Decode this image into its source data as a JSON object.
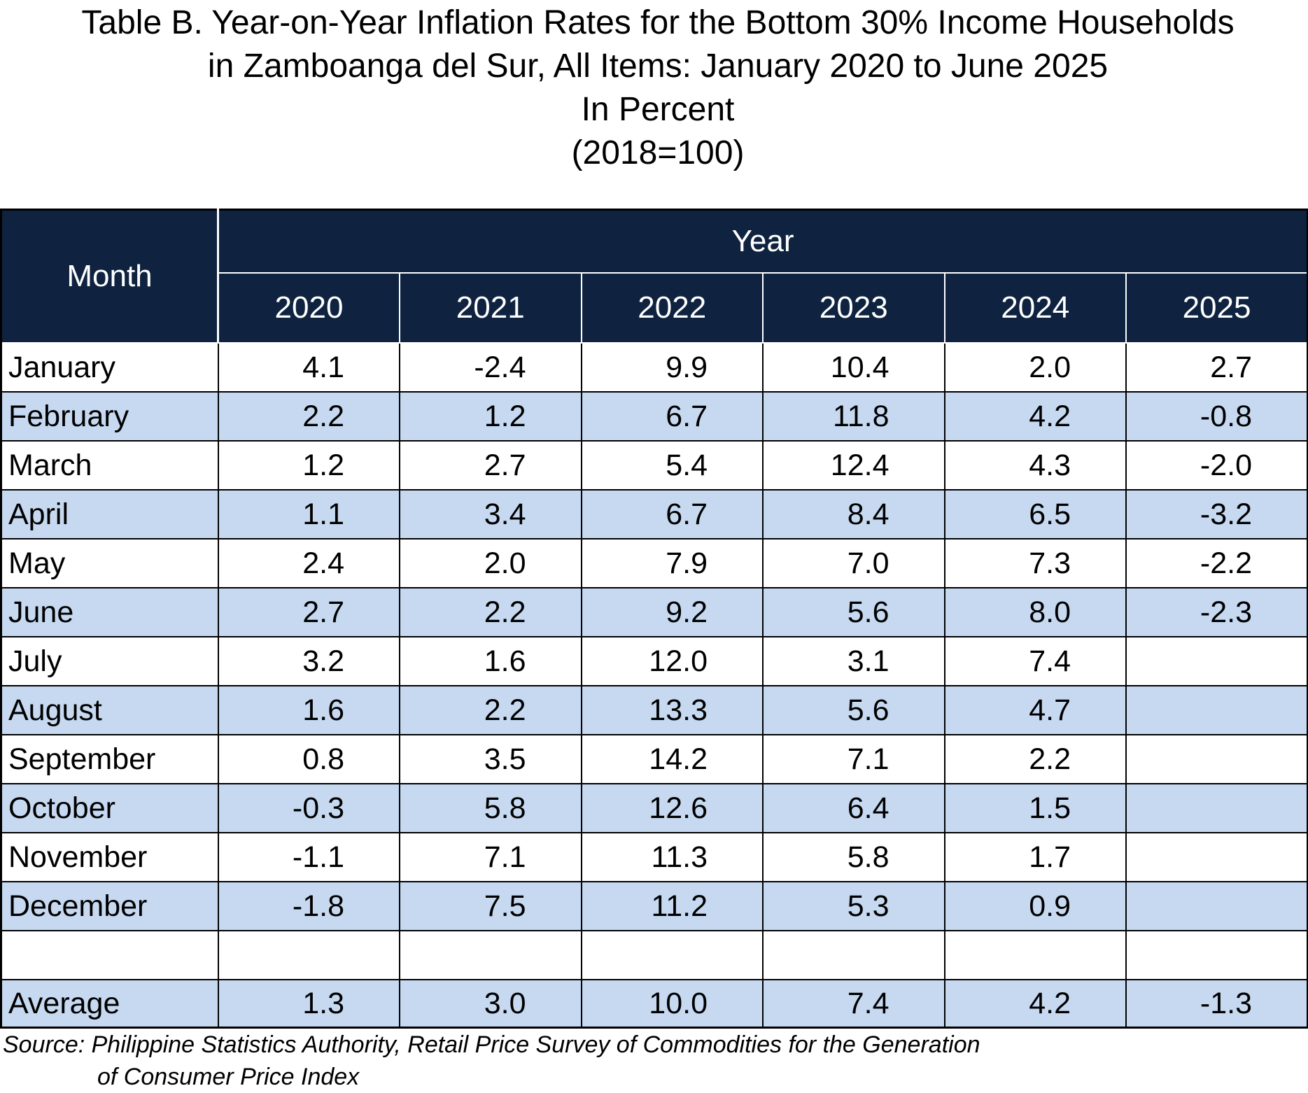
{
  "chart_data": {
    "type": "table",
    "title": [
      "Table B. Year-on-Year Inflation Rates for the Bottom 30% Income Households",
      "in Zamboanga del Sur, All Items: January 2020 to June 2025",
      "In Percent",
      "(2018=100)"
    ],
    "header": {
      "month": "Month",
      "group": "Year",
      "years": [
        "2020",
        "2021",
        "2022",
        "2023",
        "2024",
        "2025"
      ]
    },
    "rows": [
      {
        "month": "January",
        "values": [
          "4.1",
          "-2.4",
          "9.9",
          "10.4",
          "2.0",
          "2.7"
        ]
      },
      {
        "month": "February",
        "values": [
          "2.2",
          "1.2",
          "6.7",
          "11.8",
          "4.2",
          "-0.8"
        ]
      },
      {
        "month": "March",
        "values": [
          "1.2",
          "2.7",
          "5.4",
          "12.4",
          "4.3",
          "-2.0"
        ]
      },
      {
        "month": "April",
        "values": [
          "1.1",
          "3.4",
          "6.7",
          "8.4",
          "6.5",
          "-3.2"
        ]
      },
      {
        "month": "May",
        "values": [
          "2.4",
          "2.0",
          "7.9",
          "7.0",
          "7.3",
          "-2.2"
        ]
      },
      {
        "month": "June",
        "values": [
          "2.7",
          "2.2",
          "9.2",
          "5.6",
          "8.0",
          "-2.3"
        ]
      },
      {
        "month": "July",
        "values": [
          "3.2",
          "1.6",
          "12.0",
          "3.1",
          "7.4",
          ""
        ]
      },
      {
        "month": "August",
        "values": [
          "1.6",
          "2.2",
          "13.3",
          "5.6",
          "4.7",
          ""
        ]
      },
      {
        "month": "September",
        "values": [
          "0.8",
          "3.5",
          "14.2",
          "7.1",
          "2.2",
          ""
        ]
      },
      {
        "month": "October",
        "values": [
          "-0.3",
          "5.8",
          "12.6",
          "6.4",
          "1.5",
          ""
        ]
      },
      {
        "month": "November",
        "values": [
          "-1.1",
          "7.1",
          "11.3",
          "5.8",
          "1.7",
          ""
        ]
      },
      {
        "month": "December",
        "values": [
          "-1.8",
          "7.5",
          "11.2",
          "5.3",
          "0.9",
          ""
        ]
      }
    ],
    "average": {
      "month": "Average",
      "values": [
        "1.3",
        "3.0",
        "10.0",
        "7.4",
        "4.2",
        "-1.3"
      ]
    },
    "source": [
      "Source: Philippine Statistics Authority, Retail Price Survey of Commodities for the Generation",
      "of Consumer Price Index"
    ]
  },
  "colors": {
    "header_background": "#0f2340",
    "header_text": "#ffffff",
    "shaded_row": "#c6d9f1",
    "border": "#000000"
  }
}
